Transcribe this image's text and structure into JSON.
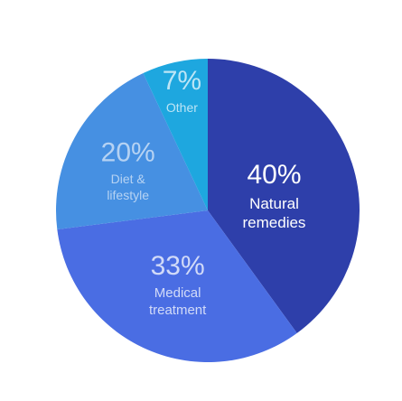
{
  "chart_data": {
    "type": "pie",
    "categories": [
      "Natural remedies",
      "Medical treatment",
      "Diet & lifestyle",
      "Other"
    ],
    "values": [
      40,
      33,
      20,
      7
    ],
    "value_labels": [
      "40%",
      "33%",
      "20%",
      "7%"
    ],
    "colors": [
      "#2e3faa",
      "#4a6de3",
      "#4690e2",
      "#1ea7df"
    ]
  }
}
